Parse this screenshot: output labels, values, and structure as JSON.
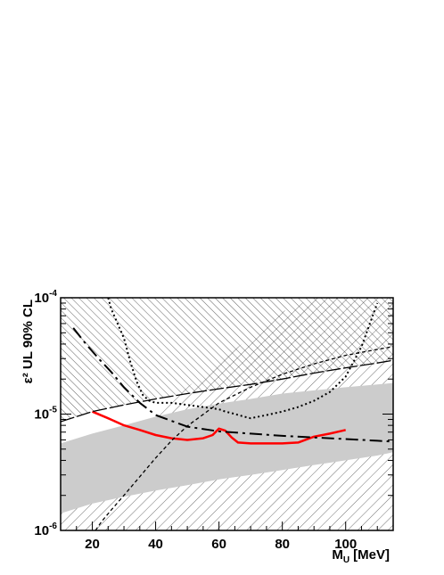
{
  "chart_data": {
    "type": "line",
    "xlabel_main": "M",
    "xlabel_sub": "U",
    "xlabel_unit": "[MeV]",
    "ylabel": "ε² UL 90% CL",
    "xlim": [
      10,
      115
    ],
    "ylim": [
      1e-06,
      0.0001
    ],
    "yscale": "log",
    "x_ticks": [
      20,
      40,
      60,
      80,
      100
    ],
    "x_tick_labels": [
      "20",
      "40",
      "60",
      "80",
      "100"
    ],
    "y_ticks": [
      {
        "base": "10",
        "exp": "-6",
        "value": 1e-06
      },
      {
        "base": "10",
        "exp": "-5",
        "value": 1e-05
      },
      {
        "base": "10",
        "exp": "-4",
        "value": 0.0001
      }
    ],
    "grid": false,
    "series": [
      {
        "style": "solid-red",
        "color": "#ff0000",
        "x": [
          20,
          25,
          30,
          35,
          40,
          45,
          50,
          55,
          58,
          60,
          62,
          64,
          66,
          70,
          75,
          80,
          85,
          90,
          95,
          100
        ],
        "y": [
          1.05e-05,
          9.2e-06,
          8e-06,
          7.3e-06,
          6.6e-06,
          6.2e-06,
          6e-06,
          6.2e-06,
          6.6e-06,
          7.5e-06,
          7.2e-06,
          6.3e-06,
          5.7e-06,
          5.6e-06,
          5.6e-06,
          5.6e-06,
          5.7e-06,
          6.4e-06,
          6.8e-06,
          7.3e-06
        ]
      },
      {
        "style": "dash-dot",
        "color": "#000000",
        "x": [
          14,
          18,
          22,
          26,
          30,
          35,
          40,
          50,
          60,
          70,
          80,
          90,
          100,
          110,
          115
        ],
        "y": [
          5.5e-05,
          4e-05,
          3e-05,
          2.3e-05,
          1.7e-05,
          1.25e-05,
          9.8e-06,
          7.8e-06,
          7.1e-06,
          6.8e-06,
          6.5e-06,
          6.3e-06,
          6.1e-06,
          5.9e-06,
          5.8e-06
        ]
      },
      {
        "style": "dotted",
        "color": "#000000",
        "x": [
          25,
          26,
          28,
          30,
          32,
          34,
          36,
          38,
          40,
          45,
          50,
          55,
          60,
          62,
          64,
          68,
          70,
          75,
          80,
          85,
          90,
          95,
          100,
          105,
          110
        ],
        "y": [
          0.0001,
          8e-05,
          6e-05,
          4.5e-05,
          2.8e-05,
          1.9e-05,
          1.45e-05,
          1.3e-05,
          1.25e-05,
          1.25e-05,
          1.2e-05,
          1.15e-05,
          1.1e-05,
          1.05e-05,
          1.02e-05,
          9.5e-06,
          9.2e-06,
          9.8e-06,
          1.05e-05,
          1.15e-05,
          1.3e-05,
          1.55e-05,
          2.1e-05,
          3.8e-05,
          9e-05
        ]
      },
      {
        "style": "dashed",
        "color": "#000000",
        "x": [
          21,
          23,
          26,
          30,
          35,
          40,
          45,
          50,
          60,
          70,
          80,
          90,
          100,
          110,
          115
        ],
        "y": [
          1e-06,
          1.2e-06,
          1.5e-06,
          2e-06,
          2.9e-06,
          4.2e-06,
          5.9e-06,
          7.9e-06,
          1.25e-05,
          1.7e-05,
          2.2e-05,
          2.7e-05,
          3.2e-05,
          3.6e-05,
          3.8e-05
        ]
      },
      {
        "style": "long-dash",
        "color": "#000000",
        "x": [
          10,
          20,
          30,
          40,
          50,
          60,
          70,
          80,
          90,
          100,
          110,
          115
        ],
        "y": [
          8.6e-06,
          1.05e-05,
          1.2e-05,
          1.35e-05,
          1.5e-05,
          1.65e-05,
          1.8e-05,
          2e-05,
          2.25e-05,
          2.5e-05,
          2.75e-05,
          2.9e-05
        ]
      }
    ],
    "bands": [
      {
        "style": "gray-band",
        "color": "#cccccc",
        "x": [
          10,
          20,
          30,
          40,
          50,
          60,
          70,
          80,
          90,
          100,
          110,
          115
        ],
        "y_low": [
          1.4e-06,
          1.7e-06,
          1.95e-06,
          2.2e-06,
          2.45e-06,
          2.75e-06,
          3e-06,
          3.3e-06,
          3.65e-06,
          4e-06,
          4.4e-06,
          4.7e-06
        ],
        "y_high": [
          5.6e-06,
          6.8e-06,
          8e-06,
          9.5e-06,
          1.1e-05,
          1.23e-05,
          1.35e-05,
          1.5e-05,
          1.6e-05,
          1.7e-05,
          1.8e-05,
          1.85e-05
        ]
      }
    ],
    "excluded_regions": [
      {
        "style": "hatch-dense-diagonal",
        "boundary_x": [
          10,
          20,
          30,
          40,
          50,
          60,
          70,
          80,
          90,
          100,
          110,
          115
        ],
        "boundary_y": [
          8.6e-06,
          1.05e-05,
          1.2e-05,
          1.35e-05,
          1.5e-05,
          1.65e-05,
          1.8e-05,
          2e-05,
          2.25e-05,
          2.5e-05,
          2.75e-05,
          2.9e-05
        ],
        "fill_to": "top"
      },
      {
        "style": "hatch-sparse-diagonal",
        "boundary_x": [
          10,
          20,
          30,
          40,
          50,
          60,
          70,
          80,
          90,
          100,
          110,
          115
        ],
        "boundary_y": [
          2.2e-06,
          3.6e-06,
          6e-06,
          1e-05,
          1.7e-05,
          2.8e-05,
          4.6e-05,
          7.6e-05,
          0.0001,
          0.0001,
          0.0001,
          0.0001
        ],
        "fill_to": "bottom"
      }
    ]
  }
}
